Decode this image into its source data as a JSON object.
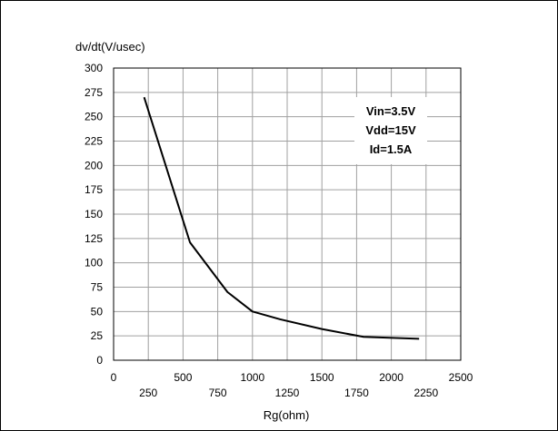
{
  "chart_data": {
    "type": "line",
    "title": "",
    "xlabel": "Rg(ohm)",
    "ylabel": "dv/dt(V/usec)",
    "xlim": [
      0,
      2500
    ],
    "ylim": [
      0,
      300
    ],
    "x_ticks_upper": [
      "0",
      "500",
      "1000",
      "1500",
      "2000",
      "2500"
    ],
    "x_ticks_lower": [
      "250",
      "750",
      "1250",
      "1750",
      "2250"
    ],
    "y_ticks": [
      "0",
      "25",
      "50",
      "75",
      "100",
      "125",
      "150",
      "175",
      "200",
      "225",
      "250",
      "275",
      "300"
    ],
    "grid": true,
    "annotations": [
      "Vin=3.5V",
      "Vdd=15V",
      "Id=1.5A"
    ],
    "series": [
      {
        "x": [
          220,
          550,
          820,
          1000,
          1200,
          1500,
          1800,
          2200
        ],
        "values": [
          270,
          121,
          70,
          50,
          42,
          32,
          24,
          22
        ]
      }
    ],
    "colors": {
      "line": "#000000",
      "grid": "#a0a0a0",
      "axis": "#000000"
    }
  }
}
